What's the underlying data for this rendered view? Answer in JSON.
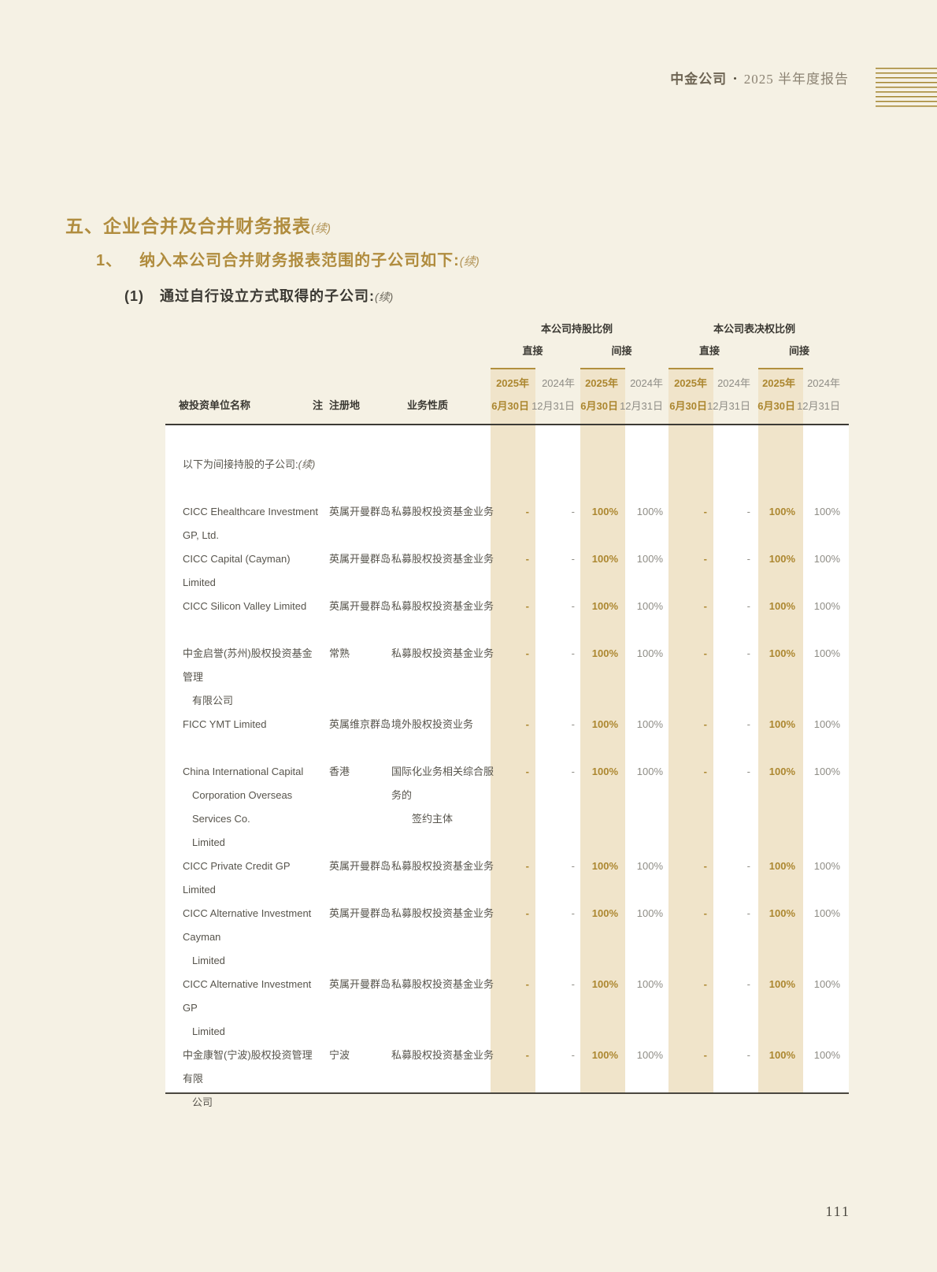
{
  "page_header": {
    "brand": "中金公司",
    "separator": "•",
    "report_title": "2025 半年度报告"
  },
  "headings": {
    "h1": "五、企业合并及合并财务报表",
    "h1_cont": "(续)",
    "h2_num": "1、",
    "h2": "纳入本公司合并财务报表范围的子公司如下:",
    "h2_cont": "(续)",
    "h3_num": "(1)",
    "h3": "通过自行设立方式取得的子公司:",
    "h3_cont": "(续)"
  },
  "table": {
    "group_headers": {
      "shareholding": "本公司持股比例",
      "voting": "本公司表决权比例"
    },
    "sub_headers": {
      "direct": "直接",
      "indirect": "间接"
    },
    "col_dates": {
      "y2025_line1": "2025年",
      "y2025_line2": "6月30日",
      "y2024_line1": "2024年",
      "y2024_line2": "12月31日"
    },
    "left_headers": {
      "name": "被投资单位名称",
      "note": "注",
      "registered_place": "注册地",
      "business_nature": "业务性质"
    },
    "section_label": "以下为间接持股的子公司:",
    "section_label_cont": "(续)",
    "rows": [
      {
        "name_lines": [
          "CICC Ehealthcare Investment GP, Ltd."
        ],
        "reg": "英属开曼群岛",
        "biz_lines": [
          "私募股权投资基金业务"
        ],
        "values": [
          "-",
          "-",
          "100%",
          "100%",
          "-",
          "-",
          "100%",
          "100%"
        ]
      },
      {
        "name_lines": [
          "CICC Capital (Cayman) Limited"
        ],
        "reg": "英属开曼群岛",
        "biz_lines": [
          "私募股权投资基金业务"
        ],
        "values": [
          "-",
          "-",
          "100%",
          "100%",
          "-",
          "-",
          "100%",
          "100%"
        ]
      },
      {
        "name_lines": [
          "CICC Silicon Valley Limited"
        ],
        "reg": "英属开曼群岛",
        "biz_lines": [
          "私募股权投资基金业务"
        ],
        "values": [
          "-",
          "-",
          "100%",
          "100%",
          "-",
          "-",
          "100%",
          "100%"
        ]
      },
      {
        "name_lines": [
          "中金启誉(苏州)股权投资基金管理",
          "有限公司"
        ],
        "reg": "常熟",
        "biz_lines": [
          "私募股权投资基金业务"
        ],
        "values": [
          "-",
          "-",
          "100%",
          "100%",
          "-",
          "-",
          "100%",
          "100%"
        ]
      },
      {
        "name_lines": [
          "FICC YMT Limited"
        ],
        "reg": "英属维京群岛",
        "biz_lines": [
          "境外股权投资业务"
        ],
        "values": [
          "-",
          "-",
          "100%",
          "100%",
          "-",
          "-",
          "100%",
          "100%"
        ]
      },
      {
        "name_lines": [
          "China International Capital",
          "Corporation Overseas Services Co.",
          "Limited"
        ],
        "reg": "香港",
        "biz_lines": [
          "国际化业务相关综合服务的",
          "签约主体"
        ],
        "values": [
          "-",
          "-",
          "100%",
          "100%",
          "-",
          "-",
          "100%",
          "100%"
        ]
      },
      {
        "name_lines": [
          "CICC Private Credit GP Limited"
        ],
        "reg": "英属开曼群岛",
        "biz_lines": [
          "私募股权投资基金业务"
        ],
        "values": [
          "-",
          "-",
          "100%",
          "100%",
          "-",
          "-",
          "100%",
          "100%"
        ]
      },
      {
        "name_lines": [
          "CICC Alternative Investment Cayman",
          "Limited"
        ],
        "reg": "英属开曼群岛",
        "biz_lines": [
          "私募股权投资基金业务"
        ],
        "values": [
          "-",
          "-",
          "100%",
          "100%",
          "-",
          "-",
          "100%",
          "100%"
        ]
      },
      {
        "name_lines": [
          "CICC Alternative Investment GP",
          "Limited"
        ],
        "reg": "英属开曼群岛",
        "biz_lines": [
          "私募股权投资基金业务"
        ],
        "values": [
          "-",
          "-",
          "100%",
          "100%",
          "-",
          "-",
          "100%",
          "100%"
        ]
      },
      {
        "name_lines": [
          "中金康智(宁波)股权投资管理有限",
          "公司"
        ],
        "reg": "宁波",
        "biz_lines": [
          "私募股权投资基金业务"
        ],
        "values": [
          "-",
          "-",
          "100%",
          "100%",
          "-",
          "-",
          "100%",
          "100%"
        ]
      }
    ]
  },
  "page_number": "111",
  "colors": {
    "page_background": "#F5F1E4",
    "table_body_background": "#FFFFFF",
    "highlight_column": "#F0E4CA",
    "gold_accent": "#AC8730",
    "gold_heading": "#B08C3E",
    "gold_border": "#B2903E",
    "gray_text": "#8F8D86",
    "dark_text": "#3B3933",
    "body_text": "#57544C"
  }
}
